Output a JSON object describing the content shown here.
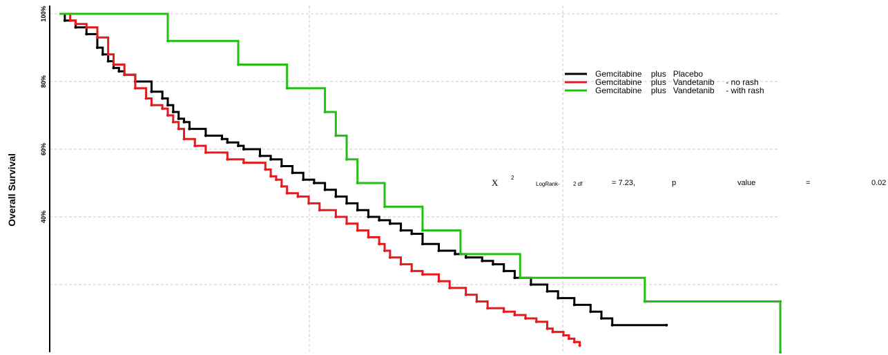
{
  "chart_data": {
    "type": "line",
    "title": "",
    "xlabel": "",
    "ylabel": "Overall Survival",
    "ylim": [
      0,
      100
    ],
    "y_ticks": [
      {
        "value": 100,
        "label": "100%"
      },
      {
        "value": 80,
        "label": "80%"
      },
      {
        "value": 60,
        "label": "60%"
      },
      {
        "value": 40,
        "label": "40%"
      }
    ],
    "grid": true,
    "legend_position": "right",
    "series": [
      {
        "name": "Gemcitabine    plus   Placebo",
        "color": "#000000",
        "points": [
          [
            0,
            100
          ],
          [
            1,
            98
          ],
          [
            3,
            96
          ],
          [
            5,
            94
          ],
          [
            7,
            90
          ],
          [
            8,
            88
          ],
          [
            9,
            86
          ],
          [
            10,
            84
          ],
          [
            11,
            83
          ],
          [
            12,
            82
          ],
          [
            14,
            80
          ],
          [
            17,
            77
          ],
          [
            19,
            75
          ],
          [
            20,
            73
          ],
          [
            21,
            71
          ],
          [
            22,
            69
          ],
          [
            23,
            68
          ],
          [
            24,
            66
          ],
          [
            27,
            64
          ],
          [
            30,
            63
          ],
          [
            31,
            62
          ],
          [
            33,
            61
          ],
          [
            34,
            60
          ],
          [
            37,
            58
          ],
          [
            39,
            57
          ],
          [
            41,
            55
          ],
          [
            43,
            53
          ],
          [
            45,
            51
          ],
          [
            47,
            50
          ],
          [
            49,
            48
          ],
          [
            51,
            46
          ],
          [
            53,
            44
          ],
          [
            55,
            42
          ],
          [
            57,
            40
          ],
          [
            59,
            39
          ],
          [
            61,
            38
          ],
          [
            63,
            36
          ],
          [
            65,
            35
          ],
          [
            67,
            32
          ],
          [
            70,
            30
          ],
          [
            73,
            29
          ],
          [
            75,
            28
          ],
          [
            78,
            27
          ],
          [
            80,
            26
          ],
          [
            82,
            24
          ],
          [
            84,
            22
          ],
          [
            87,
            20
          ],
          [
            90,
            18
          ],
          [
            92,
            16
          ],
          [
            95,
            14
          ],
          [
            98,
            12
          ],
          [
            100,
            10
          ],
          [
            102,
            8
          ],
          [
            112,
            8
          ]
        ]
      },
      {
        "name": "Gemcitabine    plus   Vandetanib     - no rash",
        "color": "#e41a1c",
        "points": [
          [
            0,
            100
          ],
          [
            2,
            98
          ],
          [
            3,
            97
          ],
          [
            5,
            96
          ],
          [
            7,
            93
          ],
          [
            9,
            88
          ],
          [
            10,
            85
          ],
          [
            12,
            82
          ],
          [
            14,
            78
          ],
          [
            16,
            75
          ],
          [
            17,
            73
          ],
          [
            19,
            72
          ],
          [
            20,
            70
          ],
          [
            21,
            68
          ],
          [
            22,
            66
          ],
          [
            23,
            63
          ],
          [
            25,
            61
          ],
          [
            27,
            59
          ],
          [
            31,
            57
          ],
          [
            34,
            56
          ],
          [
            38,
            54
          ],
          [
            39,
            52
          ],
          [
            40,
            51
          ],
          [
            41,
            49
          ],
          [
            42,
            47
          ],
          [
            44,
            46
          ],
          [
            46,
            44
          ],
          [
            48,
            42
          ],
          [
            51,
            40
          ],
          [
            53,
            38
          ],
          [
            55,
            36
          ],
          [
            57,
            34
          ],
          [
            59,
            32
          ],
          [
            60,
            30
          ],
          [
            61,
            28
          ],
          [
            63,
            26
          ],
          [
            65,
            24
          ],
          [
            67,
            23
          ],
          [
            70,
            21
          ],
          [
            72,
            19
          ],
          [
            75,
            17
          ],
          [
            77,
            15
          ],
          [
            79,
            13
          ],
          [
            82,
            12
          ],
          [
            84,
            11
          ],
          [
            86,
            10
          ],
          [
            88,
            9
          ],
          [
            90,
            7
          ],
          [
            91,
            6
          ],
          [
            93,
            5
          ],
          [
            94,
            4
          ],
          [
            95,
            3
          ],
          [
            96,
            2
          ]
        ]
      },
      {
        "name": "Gemcitabine    plus   Vandetanib     - with rash",
        "color": "#22c010",
        "points": [
          [
            0,
            100
          ],
          [
            20,
            92
          ],
          [
            33,
            85
          ],
          [
            42,
            78
          ],
          [
            49,
            71
          ],
          [
            51,
            64
          ],
          [
            53,
            57
          ],
          [
            55,
            50
          ],
          [
            60,
            43
          ],
          [
            67,
            36
          ],
          [
            74,
            29
          ],
          [
            85,
            22
          ],
          [
            108,
            15
          ],
          [
            133,
            15
          ],
          [
            133,
            0
          ]
        ]
      }
    ],
    "annotation": {
      "chi": "X",
      "power": "2",
      "test": "LogRank-",
      "df": "2  df",
      "equals_value": "= 7.23,",
      "p": "p",
      "value_word": "value",
      "equals": "=",
      "p_value": "0.02"
    }
  }
}
